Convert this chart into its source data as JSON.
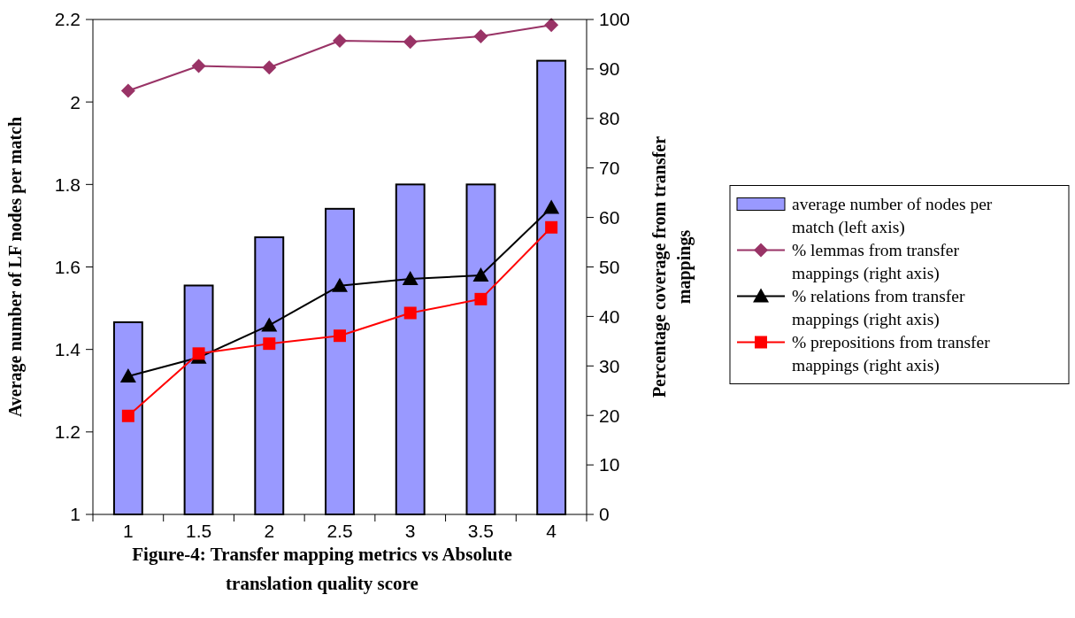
{
  "chart_data": {
    "type": "bar",
    "title": "Figure-4: Transfer mapping metrics vs Absolute translation quality score",
    "ylabel": "Average number of LF nodes per match",
    "y2label": "Percentage coverage from transfer mappings",
    "categories": [
      "1",
      "1.5",
      "2",
      "2.5",
      "3",
      "3.5",
      "4"
    ],
    "series": [
      {
        "name": "average number of nodes per match (left axis)",
        "color": "#9999ff",
        "values": [
          1.466,
          1.555,
          1.672,
          1.741,
          1.8,
          1.8,
          2.1
        ]
      },
      {
        "name": "% lemmas from transfer mappings (right axis)",
        "type": "line",
        "axis": "y2",
        "marker": "diamond",
        "color": "#993366",
        "values": [
          85.6,
          90.6,
          90.3,
          95.7,
          95.5,
          96.6,
          98.9
        ]
      },
      {
        "name": "% relations from transfer mappings (right axis)",
        "type": "line",
        "axis": "y2",
        "marker": "triangle",
        "color": "#000000",
        "values": [
          27.9,
          31.7,
          38.2,
          46.2,
          47.6,
          48.3,
          62
        ]
      },
      {
        "name": "% prepositions from transfer mappings (right axis)",
        "type": "line",
        "axis": "y2",
        "marker": "square",
        "color": "#ff0000",
        "values": [
          19.9,
          32.5,
          34.5,
          36.1,
          40.7,
          43.5,
          58
        ]
      }
    ],
    "ylim": [
      1,
      2.2
    ],
    "yticks": [
      1,
      1.2,
      1.4,
      1.6,
      1.8,
      2,
      2.2
    ],
    "y2lim": [
      0,
      100
    ],
    "y2ticks": [
      0,
      10,
      20,
      30,
      40,
      50,
      60,
      70,
      80,
      90,
      100
    ],
    "legend": "right"
  }
}
